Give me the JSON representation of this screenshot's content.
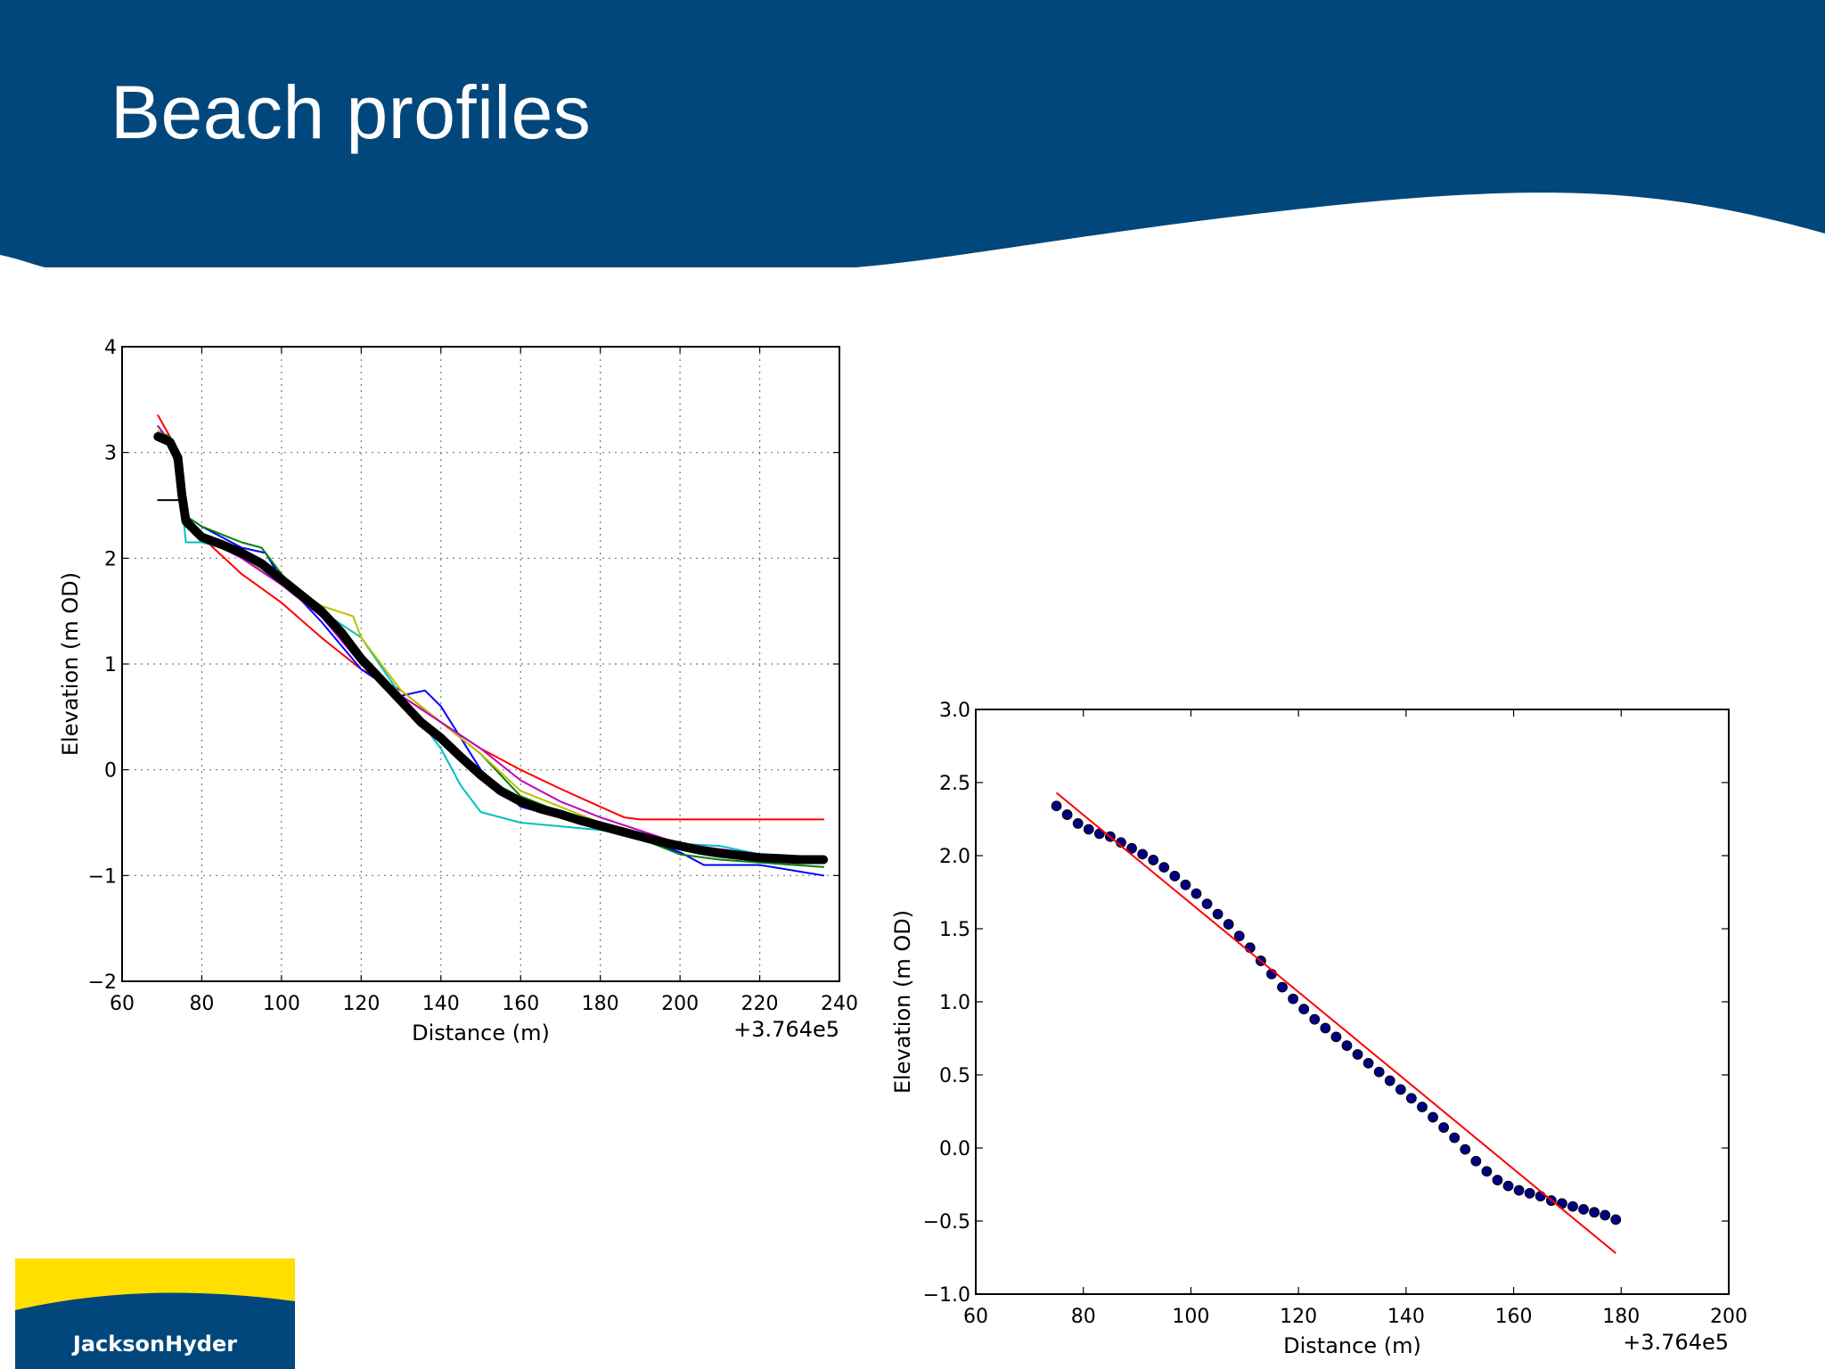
{
  "slide": {
    "title": "Beach profiles",
    "colors": {
      "banner": "#02477c",
      "text": "#ffffff",
      "logo_yellow": "#ffe000",
      "logo_blue": "#02477c"
    }
  },
  "logo": {
    "text": "JacksonHyder",
    "icon": "jacksonhyder-logo"
  },
  "chart_data": [
    {
      "type": "line",
      "title": "",
      "xlabel": "Distance (m)",
      "ylabel": "Elevation (m OD)",
      "xlim": [
        60,
        240
      ],
      "ylim": [
        -2,
        4
      ],
      "xticks": [
        60,
        80,
        100,
        120,
        140,
        160,
        180,
        200,
        220,
        240
      ],
      "yticks": [
        -2,
        -1,
        0,
        1,
        2,
        3,
        4
      ],
      "x_offset_label": "+3.764e5",
      "grid": true,
      "series": [
        {
          "color": "#ff0000",
          "width": 2,
          "x": [
            69,
            72,
            74,
            76,
            80,
            90,
            100,
            110,
            120,
            130,
            140,
            150,
            160,
            170,
            180,
            186,
            190,
            236
          ],
          "y": [
            3.35,
            3.15,
            2.9,
            2.3,
            2.2,
            1.85,
            1.58,
            1.25,
            0.95,
            0.75,
            0.45,
            0.2,
            0.0,
            -0.18,
            -0.35,
            -0.45,
            -0.47,
            -0.47
          ]
        },
        {
          "color": "#0000ff",
          "width": 2,
          "x": [
            69,
            72,
            74,
            76,
            80,
            90,
            96,
            100,
            110,
            120,
            130,
            136,
            140,
            150,
            160,
            170,
            180,
            190,
            200,
            206,
            220,
            236
          ],
          "y": [
            3.2,
            3.1,
            2.8,
            2.4,
            2.3,
            2.1,
            2.05,
            1.8,
            1.4,
            0.95,
            0.7,
            0.75,
            0.6,
            0.0,
            -0.35,
            -0.45,
            -0.55,
            -0.65,
            -0.78,
            -0.9,
            -0.9,
            -1.0
          ]
        },
        {
          "color": "#00bfbf",
          "width": 2,
          "x": [
            69,
            72,
            74,
            76,
            80,
            90,
            100,
            110,
            120,
            130,
            140,
            145,
            150,
            160,
            180,
            200,
            210,
            220,
            236
          ],
          "y": [
            3.25,
            3.1,
            2.9,
            2.15,
            2.15,
            2.05,
            1.75,
            1.5,
            1.25,
            0.7,
            0.2,
            -0.15,
            -0.4,
            -0.5,
            -0.57,
            -0.7,
            -0.72,
            -0.8,
            -0.88
          ]
        },
        {
          "color": "#008000",
          "width": 2,
          "x": [
            69,
            72,
            74,
            76,
            80,
            90,
            95,
            100,
            110,
            120,
            130,
            140,
            150,
            160,
            170,
            180,
            190,
            200,
            210,
            236
          ],
          "y": [
            3.2,
            3.15,
            2.95,
            2.4,
            2.3,
            2.15,
            2.1,
            1.85,
            1.45,
            1.0,
            0.7,
            0.45,
            0.15,
            -0.25,
            -0.4,
            -0.5,
            -0.65,
            -0.8,
            -0.85,
            -0.92
          ]
        },
        {
          "color": "#bfbf00",
          "width": 2,
          "x": [
            69,
            72,
            74,
            76,
            80,
            90,
            100,
            110,
            118,
            120,
            125,
            130,
            140,
            150,
            160,
            170,
            180,
            200,
            236
          ],
          "y": [
            3.2,
            3.1,
            2.9,
            2.3,
            2.2,
            2.0,
            1.8,
            1.55,
            1.45,
            1.25,
            1.0,
            0.75,
            0.45,
            0.15,
            -0.2,
            -0.35,
            -0.5,
            -0.75,
            -0.88
          ]
        },
        {
          "color": "#bf00bf",
          "width": 2,
          "x": [
            69,
            72,
            74,
            76,
            80,
            90,
            100,
            110,
            120,
            130,
            140,
            150,
            160,
            170,
            180,
            200,
            236
          ],
          "y": [
            3.25,
            3.1,
            2.85,
            2.3,
            2.2,
            2.0,
            1.75,
            1.45,
            1.0,
            0.7,
            0.45,
            0.2,
            -0.1,
            -0.3,
            -0.45,
            -0.7,
            -0.88
          ]
        },
        {
          "color": "#000000",
          "width": 2,
          "x": [
            69,
            75
          ],
          "y": [
            2.55,
            2.55
          ]
        },
        {
          "color": "#000000",
          "width": 10,
          "x": [
            69,
            72,
            74,
            75,
            76,
            80,
            85,
            90,
            95,
            100,
            105,
            110,
            115,
            120,
            125,
            130,
            135,
            140,
            145,
            150,
            155,
            160,
            165,
            170,
            175,
            180,
            185,
            190,
            195,
            200,
            205,
            210,
            215,
            220,
            225,
            230,
            236
          ],
          "y": [
            3.15,
            3.1,
            2.95,
            2.6,
            2.35,
            2.2,
            2.13,
            2.05,
            1.95,
            1.8,
            1.65,
            1.5,
            1.3,
            1.05,
            0.85,
            0.65,
            0.45,
            0.3,
            0.12,
            -0.05,
            -0.2,
            -0.3,
            -0.37,
            -0.42,
            -0.48,
            -0.53,
            -0.58,
            -0.63,
            -0.68,
            -0.72,
            -0.76,
            -0.79,
            -0.81,
            -0.83,
            -0.84,
            -0.85,
            -0.85
          ]
        }
      ]
    },
    {
      "type": "scatter",
      "title": "",
      "xlabel": "Distance (m)",
      "ylabel": "Elevation (m OD)",
      "xlim": [
        60,
        200
      ],
      "ylim": [
        -1.0,
        3.0
      ],
      "xticks": [
        60,
        80,
        100,
        120,
        140,
        160,
        180,
        200
      ],
      "yticks": [
        -1.0,
        -0.5,
        0.0,
        0.5,
        1.0,
        1.5,
        2.0,
        2.5,
        3.0
      ],
      "x_offset_label": "+3.764e5",
      "grid": false,
      "points": {
        "color": "#00007f",
        "x": [
          75,
          77,
          79,
          81,
          83,
          85,
          87,
          89,
          91,
          93,
          95,
          97,
          99,
          101,
          103,
          105,
          107,
          109,
          111,
          113,
          115,
          117,
          119,
          121,
          123,
          125,
          127,
          129,
          131,
          133,
          135,
          137,
          139,
          141,
          143,
          145,
          147,
          149,
          151,
          153,
          155,
          157,
          159,
          161,
          163,
          165,
          167,
          169,
          171,
          173,
          175,
          177,
          179
        ],
        "y": [
          2.34,
          2.28,
          2.22,
          2.18,
          2.15,
          2.13,
          2.09,
          2.05,
          2.01,
          1.97,
          1.92,
          1.86,
          1.8,
          1.74,
          1.67,
          1.6,
          1.53,
          1.45,
          1.37,
          1.28,
          1.19,
          1.1,
          1.02,
          0.95,
          0.88,
          0.82,
          0.76,
          0.7,
          0.64,
          0.58,
          0.52,
          0.46,
          0.4,
          0.34,
          0.28,
          0.21,
          0.14,
          0.07,
          -0.01,
          -0.09,
          -0.16,
          -0.22,
          -0.26,
          -0.29,
          -0.31,
          -0.33,
          -0.36,
          -0.38,
          -0.4,
          -0.42,
          -0.44,
          -0.46,
          -0.49
        ]
      },
      "fit_line": {
        "color": "#ff0000",
        "x": [
          75,
          179
        ],
        "y": [
          2.43,
          -0.72
        ]
      }
    }
  ]
}
